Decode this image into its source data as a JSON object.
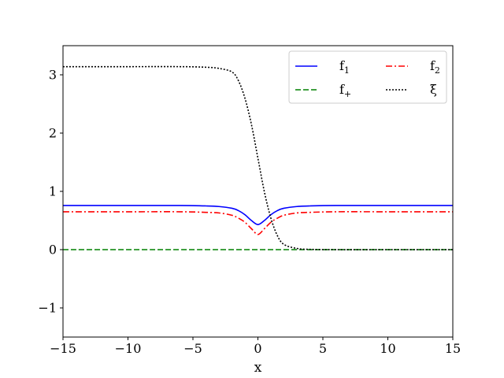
{
  "chart_data": {
    "type": "line",
    "title": "",
    "xlabel": "x",
    "ylabel": "",
    "xlim": [
      -15,
      15
    ],
    "ylim": [
      -1.5,
      3.5
    ],
    "xticks": [
      -15,
      -10,
      -5,
      0,
      5,
      10,
      15
    ],
    "xtick_labels": [
      "−15",
      "−10",
      "−5",
      "0",
      "5",
      "10",
      "15"
    ],
    "yticks": [
      -1,
      0,
      1,
      2,
      3
    ],
    "ytick_labels": [
      "−1",
      "0",
      "1",
      "2",
      "3"
    ],
    "grid": false,
    "legend": {
      "placement": "top-right",
      "columns": 2
    },
    "x": [
      -15,
      -10,
      -6,
      -4,
      -3,
      -2,
      -1.5,
      -1,
      -0.5,
      0,
      0.5,
      1,
      1.5,
      2,
      3,
      4,
      6,
      10,
      15
    ],
    "series": [
      {
        "name": "f",
        "name_sub": "1",
        "color": "#0000ff",
        "dash": "solid",
        "values": [
          0.757,
          0.757,
          0.757,
          0.75,
          0.74,
          0.71,
          0.67,
          0.6,
          0.5,
          0.43,
          0.5,
          0.6,
          0.67,
          0.71,
          0.74,
          0.75,
          0.757,
          0.757,
          0.757
        ]
      },
      {
        "name": "f",
        "name_sub": "2",
        "color": "#ff0000",
        "dash": "dashdot",
        "values": [
          0.65,
          0.65,
          0.65,
          0.64,
          0.63,
          0.59,
          0.54,
          0.47,
          0.36,
          0.26,
          0.36,
          0.47,
          0.54,
          0.59,
          0.63,
          0.64,
          0.65,
          0.65,
          0.65
        ]
      },
      {
        "name": "f",
        "name_sub": "+",
        "color": "#008000",
        "dash": "dashed",
        "values": [
          0,
          0,
          0,
          0,
          0,
          0,
          0,
          0,
          0,
          0,
          0,
          0,
          0,
          0,
          0,
          0,
          0,
          0,
          0
        ]
      },
      {
        "name": "ξ",
        "name_sub": "",
        "color": "#000000",
        "dash": "dotted",
        "values": [
          3.14,
          3.14,
          3.14,
          3.13,
          3.11,
          3.05,
          2.9,
          2.6,
          2.15,
          1.57,
          0.99,
          0.54,
          0.24,
          0.09,
          0.02,
          0.005,
          0,
          0,
          0
        ]
      }
    ]
  }
}
